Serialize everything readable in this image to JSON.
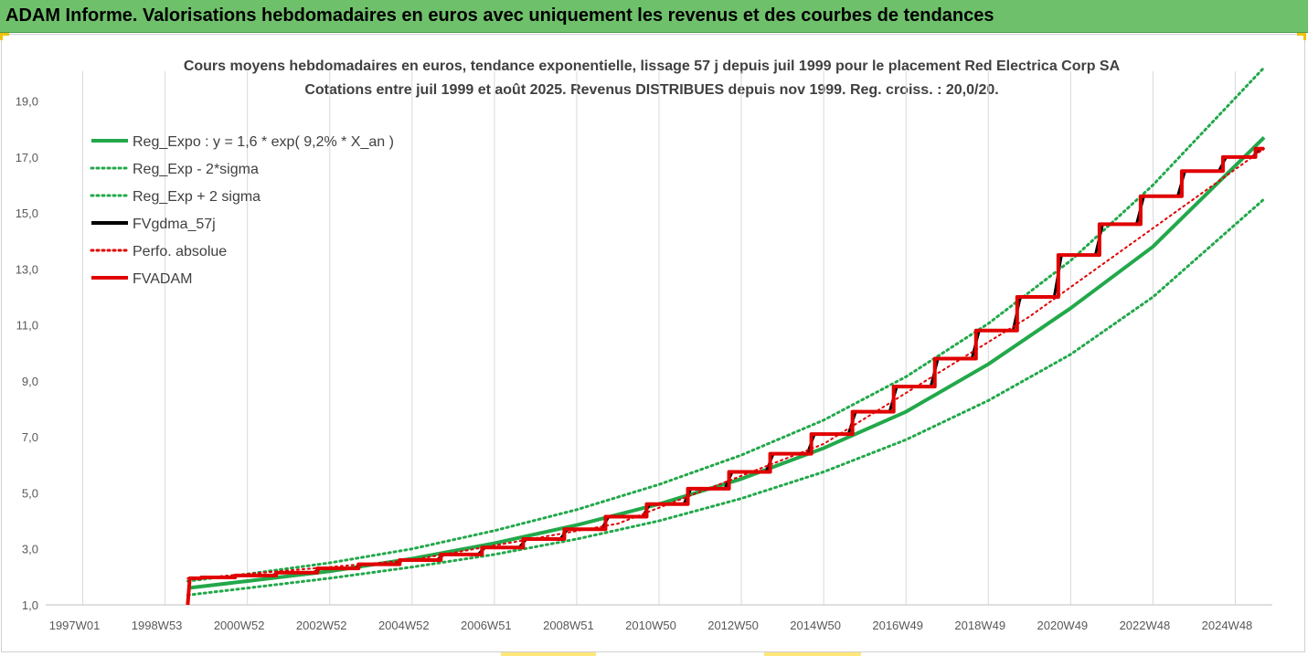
{
  "banner": {
    "title": "ADAM Informe. Valorisations hebdomadaires en euros avec uniquement les revenus et des courbes de tendances"
  },
  "chart_data": {
    "type": "line",
    "title": "Cours moyens hebdomadaires en euros, tendance exponentielle, lissage 57 j depuis juil 1999 pour le placement Red Electrica Corp SA",
    "subtitle": "Cotations entre juil 1999 et août 2025. Revenus DISTRIBUES depuis nov 1999. Reg. croiss. : 20,0/20.",
    "ylim": [
      1.0,
      20.0
    ],
    "yticks": [
      1.0,
      3.0,
      5.0,
      7.0,
      9.0,
      11.0,
      13.0,
      15.0,
      17.0,
      19.0
    ],
    "ytick_labels": [
      "1,0",
      "3,0",
      "5,0",
      "7,0",
      "9,0",
      "11,0",
      "13,0",
      "15,0",
      "17,0",
      "19,0"
    ],
    "x_tick_labels": [
      "1997W01",
      "1998W53",
      "2000W52",
      "2002W52",
      "2004W52",
      "2006W51",
      "2008W51",
      "2010W50",
      "2012W50",
      "2014W50",
      "2016W49",
      "2018W49",
      "2020W49",
      "2022W48",
      "2024W48"
    ],
    "x_tick_years": [
      1997.0,
      1999.0,
      2001.0,
      2003.0,
      2005.0,
      2007.0,
      2009.0,
      2011.0,
      2013.0,
      2015.0,
      2017.0,
      2019.0,
      2021.0,
      2023.0,
      2025.0
    ],
    "xlim": [
      1996.1,
      2025.9
    ],
    "grid": {
      "vertical": true,
      "horizontal": false
    },
    "legend_position": "top-left",
    "series": [
      {
        "name": "Reg_Expo : y = 1,6 * exp( 9,2% *  X_an )",
        "color": "#22a84a",
        "style": "solid",
        "x": [
          1999.55,
          2001,
          2003,
          2005,
          2007,
          2009,
          2011,
          2013,
          2015,
          2017,
          2019,
          2021,
          2023,
          2025.7
        ],
        "y": [
          1.6,
          1.85,
          2.2,
          2.65,
          3.2,
          3.85,
          4.6,
          5.5,
          6.6,
          7.9,
          9.6,
          11.6,
          13.8,
          17.7
        ]
      },
      {
        "name": "Reg_Exp - 2*sigma",
        "color": "#22a84a",
        "style": "dotted",
        "x": [
          1999.55,
          2001,
          2003,
          2005,
          2007,
          2009,
          2011,
          2013,
          2015,
          2017,
          2019,
          2021,
          2023,
          2025.7
        ],
        "y": [
          1.35,
          1.6,
          1.95,
          2.35,
          2.8,
          3.35,
          4.0,
          4.8,
          5.75,
          6.9,
          8.3,
          9.95,
          12.0,
          15.5
        ]
      },
      {
        "name": "Reg_Exp + 2 sigma",
        "color": "#22a84a",
        "style": "dotted",
        "x": [
          1999.55,
          2001,
          2003,
          2005,
          2007,
          2009,
          2011,
          2013,
          2015,
          2017,
          2019,
          2021,
          2023,
          2025.7
        ],
        "y": [
          1.85,
          2.1,
          2.5,
          3.0,
          3.65,
          4.4,
          5.3,
          6.35,
          7.6,
          9.15,
          11.05,
          13.3,
          16.0,
          20.2
        ]
      },
      {
        "name": "FVgdma_57j",
        "color": "#000000",
        "style": "solid",
        "x": [
          1999.55,
          1999.6,
          2000,
          2001,
          2002,
          2003,
          2004,
          2005,
          2006,
          2007,
          2008,
          2009,
          2010,
          2011,
          2012,
          2013,
          2014,
          2015,
          2016,
          2017,
          2018,
          2019,
          2020,
          2021,
          2022,
          2023,
          2024,
          2025,
          2025.7
        ],
        "y": [
          1.0,
          1.95,
          1.98,
          2.05,
          2.15,
          2.3,
          2.45,
          2.6,
          2.8,
          3.05,
          3.35,
          3.7,
          4.15,
          4.6,
          5.15,
          5.75,
          6.4,
          7.1,
          7.9,
          8.8,
          9.8,
          10.8,
          12.0,
          13.5,
          14.6,
          15.6,
          16.5,
          17.0,
          17.3
        ]
      },
      {
        "name": "Perfo. absolue",
        "color": "#e00000",
        "style": "dotted",
        "x": [
          1999.55,
          2000,
          2005,
          2010,
          2015,
          2020,
          2025.7
        ],
        "y": [
          1.95,
          1.98,
          2.6,
          3.9,
          6.75,
          11.3,
          17.3
        ]
      },
      {
        "name": "FVADAM",
        "color": "#e00000",
        "style": "solid",
        "x": [
          1999.55,
          1999.6,
          2000,
          2001,
          2002,
          2003,
          2004,
          2005,
          2006,
          2007,
          2008,
          2009,
          2010,
          2011,
          2012,
          2013,
          2014,
          2015,
          2016,
          2017,
          2018,
          2019,
          2020,
          2021,
          2022,
          2023,
          2024,
          2025,
          2025.7
        ],
        "y": [
          1.0,
          1.95,
          1.98,
          2.05,
          2.15,
          2.3,
          2.45,
          2.6,
          2.8,
          3.05,
          3.35,
          3.7,
          4.15,
          4.6,
          5.15,
          5.75,
          6.4,
          7.1,
          7.9,
          8.8,
          9.8,
          10.8,
          12.0,
          13.5,
          14.6,
          15.6,
          16.5,
          17.0,
          17.3
        ]
      }
    ]
  }
}
